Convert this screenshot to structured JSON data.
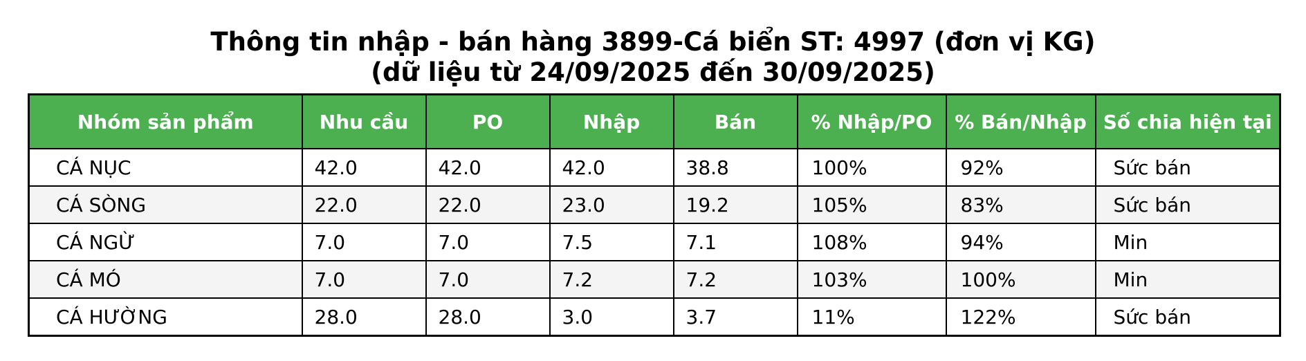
{
  "title_line1": "Thông tin nhập - bán hàng 3899-Cá biển ST: 4997 (đơn vị KG)",
  "title_line2": "(dữ liệu từ 24/09/2025 đến 30/09/2025)",
  "colors": {
    "header_bg": "#4caf50",
    "header_text": "#ffffff",
    "row_alt_bg": "#f4f4f4",
    "border": "#000000"
  },
  "chart_data": {
    "type": "table",
    "title": "Thông tin nhập - bán hàng 3899-Cá biển ST: 4997 (đơn vị KG) (dữ liệu từ 24/09/2025 đến 30/09/2025)",
    "columns": [
      "Nhóm sản phẩm",
      "Nhu cầu",
      "PO",
      "Nhập",
      "Bán",
      "% Nhập/PO",
      "% Bán/Nhập",
      "Số chia hiện tại"
    ],
    "rows": [
      [
        "CÁ NỤC",
        "42.0",
        "42.0",
        "42.0",
        "38.8",
        "100%",
        "92%",
        "Sức bán"
      ],
      [
        "CÁ SÒNG",
        "22.0",
        "22.0",
        "23.0",
        "19.2",
        "105%",
        "83%",
        "Sức bán"
      ],
      [
        "CÁ NGỪ",
        "7.0",
        "7.0",
        "7.5",
        "7.1",
        "108%",
        "94%",
        "Min"
      ],
      [
        "CÁ MÓ",
        "7.0",
        "7.0",
        "7.2",
        "7.2",
        "103%",
        "100%",
        "Min"
      ],
      [
        "CÁ HƯỜNG",
        "28.0",
        "28.0",
        "3.0",
        "3.7",
        "11%",
        "122%",
        "Sức bán"
      ]
    ]
  }
}
